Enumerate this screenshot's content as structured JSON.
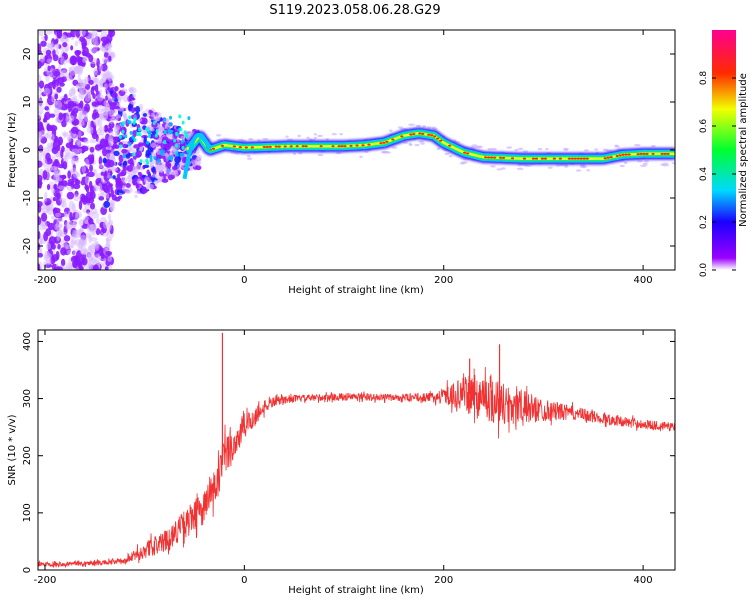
{
  "title": "S119.2023.058.06.28.G29",
  "chart_data": [
    {
      "type": "heatmap",
      "xlabel": "Height of straight line (km)",
      "ylabel": "Frequency (Hz)",
      "xlim": [
        -207,
        432
      ],
      "ylim": [
        -25,
        25
      ],
      "xticks": [
        -200,
        0,
        200,
        400
      ],
      "yticks": [
        -20,
        -10,
        0,
        10,
        20
      ],
      "colorbar": {
        "label": "Normalized spectral amplitude",
        "range": [
          0,
          1
        ],
        "ticks": [
          0.0,
          0.2,
          0.4,
          0.6,
          0.8
        ]
      },
      "ridge": {
        "x": [
          -55,
          -45,
          -35,
          -20,
          0,
          50,
          100,
          120,
          140,
          160,
          175,
          190,
          200,
          220,
          240,
          280,
          320,
          360,
          380,
          400,
          432
        ],
        "freq": [
          0.3,
          3.0,
          0.0,
          1.0,
          0.5,
          0.8,
          0.8,
          1.0,
          1.5,
          3.0,
          3.5,
          3.0,
          1.5,
          -0.5,
          -1.5,
          -1.8,
          -1.8,
          -1.8,
          -1.0,
          -0.8,
          -0.8
        ]
      }
    },
    {
      "type": "line",
      "xlabel": "Height of straight line (km)",
      "ylabel": "SNR (10 * v/v)",
      "xlim": [
        -207,
        432
      ],
      "ylim": [
        0,
        420
      ],
      "xticks": [
        -200,
        0,
        200,
        400
      ],
      "yticks": [
        0,
        100,
        200,
        300,
        400
      ],
      "series": [
        {
          "color": "#f03232",
          "x": [
            -207,
            -150,
            -120,
            -100,
            -80,
            -60,
            -40,
            -25,
            -20,
            -10,
            0,
            20,
            30,
            50,
            80,
            100,
            150,
            190,
            200,
            220,
            240,
            250,
            260,
            280,
            300,
            330,
            360,
            400,
            432
          ],
          "mean": [
            10,
            12,
            15,
            35,
            50,
            80,
            110,
            160,
            200,
            220,
            250,
            285,
            295,
            300,
            302,
            303,
            302,
            302,
            305,
            308,
            305,
            300,
            290,
            285,
            280,
            275,
            265,
            255,
            250
          ],
          "noise": [
            4,
            4,
            5,
            15,
            18,
            25,
            30,
            40,
            35,
            30,
            25,
            12,
            8,
            6,
            6,
            7,
            6,
            8,
            14,
            30,
            40,
            45,
            40,
            30,
            20,
            12,
            10,
            8,
            8
          ]
        }
      ],
      "spikes": [
        {
          "x": -22,
          "y": 415
        },
        {
          "x": 256,
          "y": 395
        },
        {
          "x": 226,
          "y": 370
        }
      ]
    }
  ]
}
